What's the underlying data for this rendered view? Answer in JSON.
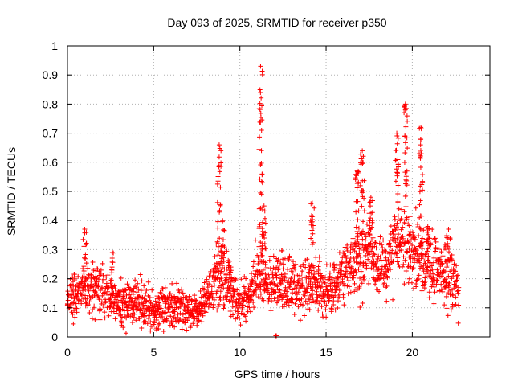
{
  "chart_data": {
    "type": "scatter",
    "title": "Day 093 of 2025, SRMTID for receiver p350",
    "xlabel": "GPS time / hours",
    "ylabel": "SRMTID / TECUs",
    "xlim": [
      0,
      24.5
    ],
    "ylim": [
      0,
      1
    ],
    "x_ticks": [
      0,
      5,
      10,
      15,
      20
    ],
    "x_tick_labels": [
      "0",
      "5",
      "10",
      "15",
      "20"
    ],
    "y_ticks": [
      0,
      0.1,
      0.2,
      0.3,
      0.4,
      0.5,
      0.6,
      0.7,
      0.8,
      0.9,
      1
    ],
    "y_tick_labels": [
      "0",
      "0.1",
      "0.2",
      "0.3",
      "0.4",
      "0.5",
      "0.6",
      "0.7",
      "0.8",
      "0.9",
      "1"
    ],
    "grid": true,
    "marker": "+",
    "color": "#ff0000",
    "series": [
      {
        "name": "SRMTID",
        "envelope": [
          [
            0.0,
            0.12
          ],
          [
            0.5,
            0.14
          ],
          [
            1.0,
            0.17
          ],
          [
            1.5,
            0.17
          ],
          [
            2.0,
            0.15
          ],
          [
            2.5,
            0.13
          ],
          [
            3.0,
            0.11
          ],
          [
            3.5,
            0.12
          ],
          [
            4.0,
            0.12
          ],
          [
            4.5,
            0.1
          ],
          [
            5.0,
            0.09
          ],
          [
            5.5,
            0.1
          ],
          [
            6.0,
            0.11
          ],
          [
            6.5,
            0.11
          ],
          [
            7.0,
            0.09
          ],
          [
            7.5,
            0.08
          ],
          [
            8.0,
            0.12
          ],
          [
            8.5,
            0.2
          ],
          [
            9.0,
            0.22
          ],
          [
            9.5,
            0.14
          ],
          [
            10.0,
            0.11
          ],
          [
            10.5,
            0.14
          ],
          [
            11.0,
            0.22
          ],
          [
            11.5,
            0.2
          ],
          [
            12.0,
            0.18
          ],
          [
            12.5,
            0.2
          ],
          [
            13.0,
            0.19
          ],
          [
            13.5,
            0.18
          ],
          [
            14.0,
            0.2
          ],
          [
            14.5,
            0.18
          ],
          [
            15.0,
            0.15
          ],
          [
            15.5,
            0.18
          ],
          [
            16.0,
            0.2
          ],
          [
            16.5,
            0.24
          ],
          [
            17.0,
            0.27
          ],
          [
            17.5,
            0.29
          ],
          [
            18.0,
            0.25
          ],
          [
            18.5,
            0.24
          ],
          [
            19.0,
            0.3
          ],
          [
            19.5,
            0.33
          ],
          [
            20.0,
            0.27
          ],
          [
            20.5,
            0.28
          ],
          [
            21.0,
            0.25
          ],
          [
            21.5,
            0.23
          ],
          [
            22.0,
            0.22
          ],
          [
            22.5,
            0.18
          ],
          [
            22.7,
            0.17
          ]
        ],
        "spikes": [
          [
            1.0,
            0.37
          ],
          [
            2.6,
            0.29
          ],
          [
            8.8,
            0.66
          ],
          [
            9.0,
            0.4
          ],
          [
            9.4,
            0.26
          ],
          [
            11.2,
            0.93
          ],
          [
            11.4,
            0.45
          ],
          [
            14.2,
            0.46
          ],
          [
            16.8,
            0.57
          ],
          [
            17.1,
            0.64
          ],
          [
            17.6,
            0.48
          ],
          [
            19.1,
            0.7
          ],
          [
            19.6,
            0.8
          ],
          [
            20.5,
            0.72
          ],
          [
            20.9,
            0.38
          ],
          [
            22.1,
            0.37
          ]
        ],
        "zero_points": [
          [
            12.1,
            0.0
          ]
        ]
      }
    ]
  }
}
